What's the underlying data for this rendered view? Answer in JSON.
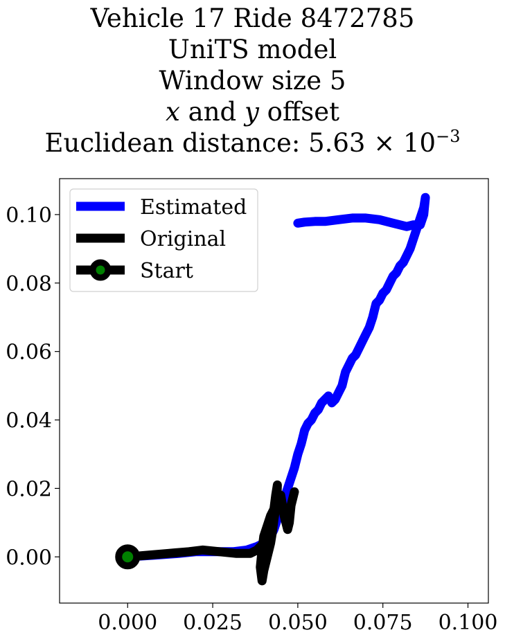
{
  "chart_data": {
    "type": "line",
    "title_lines": [
      {
        "parts": [
          {
            "text": "Vehicle 17 Ride 8472785",
            "italic": false
          }
        ]
      },
      {
        "parts": [
          {
            "text": "UniTS model",
            "italic": false
          }
        ]
      },
      {
        "parts": [
          {
            "text": "Window size 5",
            "italic": false
          }
        ]
      },
      {
        "parts": [
          {
            "text": "x",
            "italic": true
          },
          {
            "text": " and ",
            "italic": false
          },
          {
            "text": "y",
            "italic": true
          },
          {
            "text": " offset",
            "italic": false
          }
        ]
      },
      {
        "parts": [
          {
            "text": "Euclidean distance: 5.63 × 10",
            "italic": false
          }
        ],
        "sup": "−3"
      }
    ],
    "xlabel": "",
    "ylabel": "",
    "xlim": [
      -0.02,
      0.106
    ],
    "ylim": [
      -0.0135,
      0.1105
    ],
    "x_ticks": [
      0.0,
      0.025,
      0.05,
      0.075,
      0.1
    ],
    "x_tick_labels": [
      "0.000",
      "0.025",
      "0.050",
      "0.075",
      "0.100"
    ],
    "y_ticks": [
      0.0,
      0.02,
      0.04,
      0.06,
      0.08,
      0.1
    ],
    "y_tick_labels": [
      "0.00",
      "0.02",
      "0.04",
      "0.06",
      "0.08",
      "0.10"
    ],
    "grid": false,
    "legend_position": "upper-left",
    "series": [
      {
        "name": "Estimated",
        "color": "#0000ff",
        "x": [
          0.0,
          0.008,
          0.015,
          0.02,
          0.026,
          0.031,
          0.035,
          0.038,
          0.04,
          0.042,
          0.043,
          0.044,
          0.045,
          0.046,
          0.047,
          0.048,
          0.049,
          0.05,
          0.051,
          0.0515,
          0.052,
          0.053,
          0.054,
          0.055,
          0.056,
          0.057,
          0.058,
          0.059,
          0.06,
          0.061,
          0.062,
          0.063,
          0.0635,
          0.064,
          0.065,
          0.066,
          0.067,
          0.068,
          0.069,
          0.07,
          0.071,
          0.072,
          0.0725,
          0.073,
          0.074,
          0.075,
          0.076,
          0.077,
          0.078,
          0.079,
          0.08,
          0.081,
          0.082,
          0.083,
          0.084,
          0.085,
          0.086,
          0.087,
          0.0875,
          0.087,
          0.086,
          0.084,
          0.082,
          0.078,
          0.074,
          0.07,
          0.066,
          0.062,
          0.058,
          0.055,
          0.052,
          0.05
        ],
        "y": [
          0.0,
          0.0005,
          0.001,
          0.0015,
          0.0015,
          0.0015,
          0.002,
          0.003,
          0.004,
          0.006,
          0.008,
          0.011,
          0.014,
          0.017,
          0.02,
          0.023,
          0.026,
          0.03,
          0.033,
          0.035,
          0.037,
          0.039,
          0.04,
          0.042,
          0.043,
          0.045,
          0.046,
          0.047,
          0.045,
          0.046,
          0.048,
          0.05,
          0.052,
          0.054,
          0.056,
          0.058,
          0.059,
          0.061,
          0.063,
          0.065,
          0.067,
          0.07,
          0.072,
          0.074,
          0.075,
          0.077,
          0.078,
          0.08,
          0.082,
          0.083,
          0.085,
          0.086,
          0.088,
          0.09,
          0.093,
          0.096,
          0.099,
          0.102,
          0.105,
          0.1,
          0.097,
          0.097,
          0.0965,
          0.0975,
          0.0985,
          0.099,
          0.099,
          0.0985,
          0.098,
          0.098,
          0.0978,
          0.0975
        ]
      },
      {
        "name": "Original",
        "color": "#000000",
        "x": [
          0.0,
          0.006,
          0.012,
          0.018,
          0.022,
          0.027,
          0.032,
          0.036,
          0.038,
          0.04,
          0.041,
          0.042,
          0.043,
          0.0435,
          0.044,
          0.0438,
          0.043,
          0.0425,
          0.042,
          0.041,
          0.04,
          0.0395,
          0.039,
          0.0395,
          0.04,
          0.041,
          0.042,
          0.043,
          0.044,
          0.045,
          0.046,
          0.047,
          0.0475,
          0.048,
          0.049
        ],
        "y": [
          0.0,
          0.0005,
          0.001,
          0.0015,
          0.002,
          0.0015,
          0.001,
          0.001,
          0.002,
          0.004,
          0.007,
          0.01,
          0.014,
          0.018,
          0.021,
          0.016,
          0.011,
          0.007,
          0.004,
          0.0,
          -0.004,
          -0.007,
          -0.003,
          0.002,
          0.006,
          0.009,
          0.012,
          0.014,
          0.016,
          0.018,
          0.012,
          0.008,
          0.01,
          0.015,
          0.019
        ]
      }
    ],
    "start_point": {
      "name": "Start",
      "x": 0.0,
      "y": 0.0,
      "marker_edge": "#000000",
      "marker_face": "#008000"
    }
  }
}
